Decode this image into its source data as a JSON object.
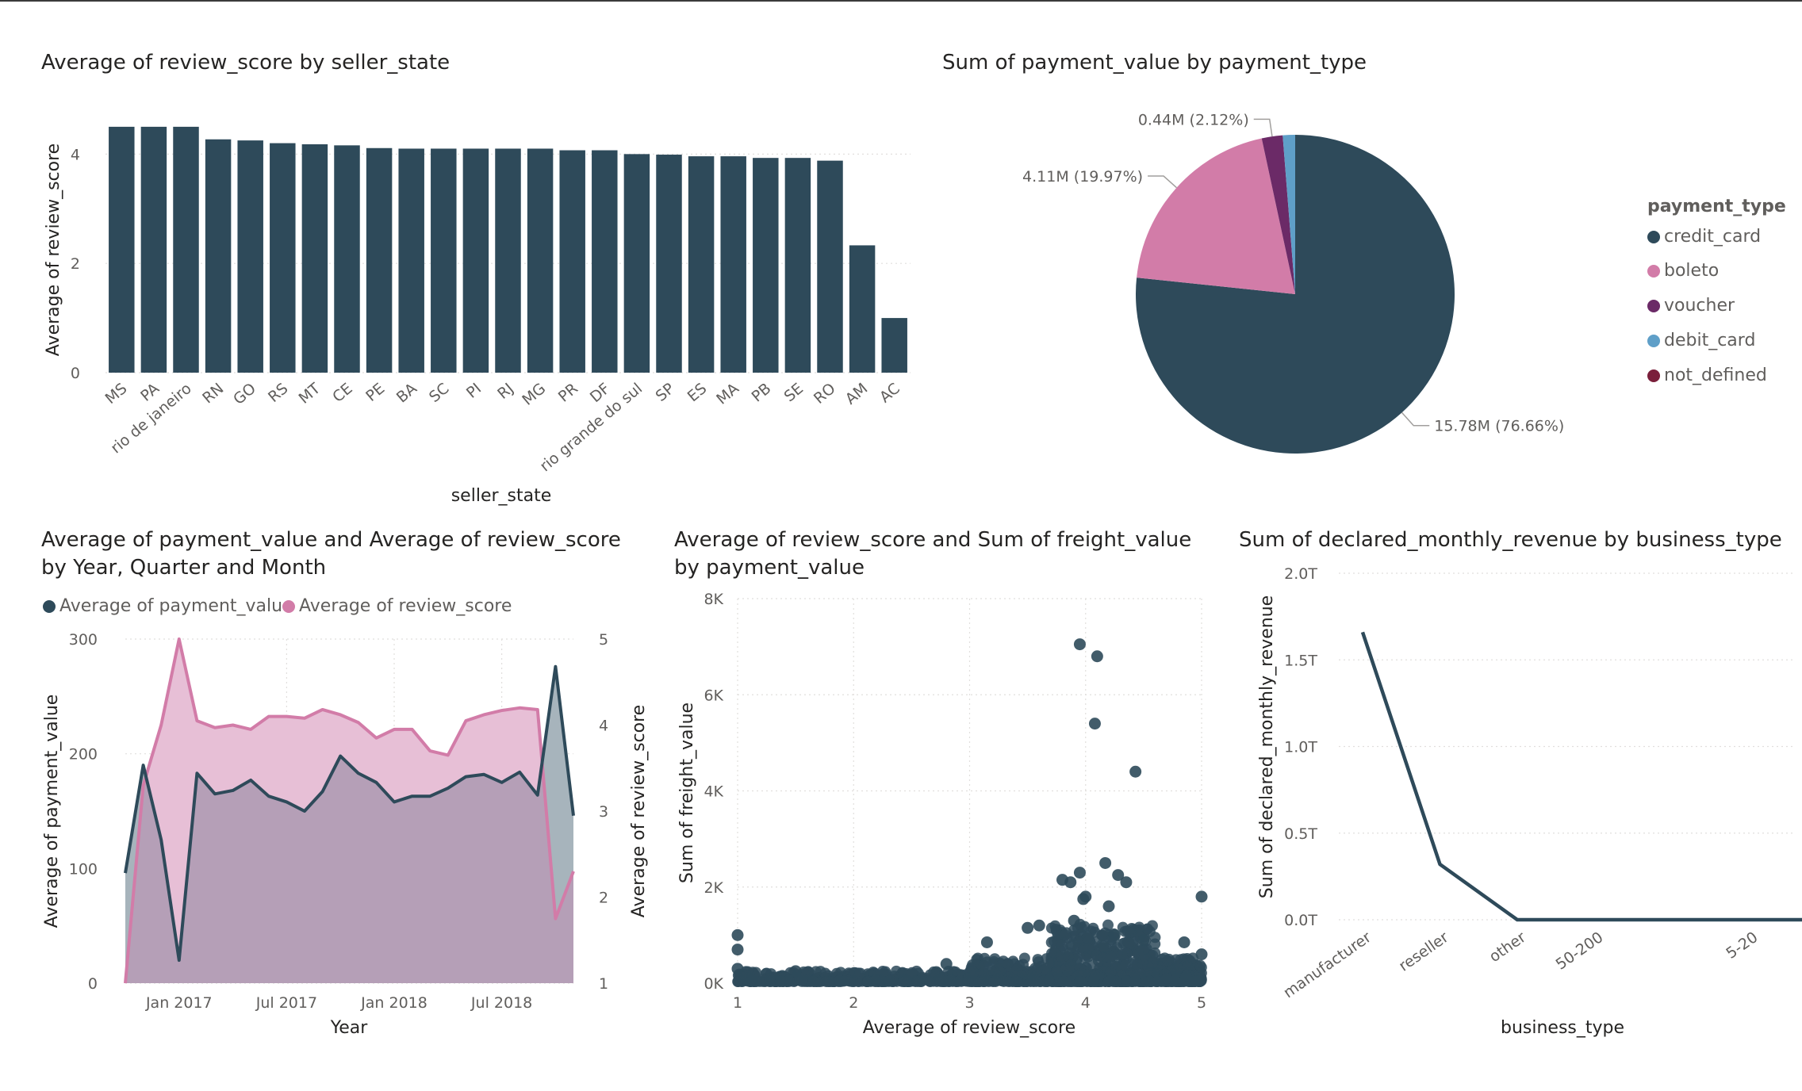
{
  "colors": {
    "dark": "#2e4a5a",
    "pink": "#d27ca8",
    "purple": "#6b2a67",
    "blue": "#5f9fc8",
    "maroon": "#7a1f3b",
    "pink_area": "#e7bfd6",
    "overlap_area": "#b59fb7",
    "dark_area": "#a7b4bc"
  },
  "chart_data": [
    {
      "id": "review_by_state",
      "type": "bar",
      "title": "Average of review_score by seller_state",
      "xlabel": "seller_state",
      "ylabel": "Average of review_score",
      "ylim": [
        0,
        4.6
      ],
      "yticks": [
        "0",
        "2",
        "4"
      ],
      "categories": [
        "MS",
        "PA",
        "rio de janeiro",
        "RN",
        "GO",
        "RS",
        "MT",
        "CE",
        "PE",
        "BA",
        "SC",
        "PI",
        "RJ",
        "MG",
        "PR",
        "DF",
        "rio grande do sul",
        "SP",
        "ES",
        "MA",
        "PB",
        "SE",
        "RO",
        "AM",
        "AC"
      ],
      "values": [
        4.5,
        4.5,
        4.5,
        4.27,
        4.25,
        4.2,
        4.18,
        4.16,
        4.11,
        4.1,
        4.1,
        4.1,
        4.1,
        4.1,
        4.07,
        4.07,
        4.0,
        3.99,
        3.96,
        3.96,
        3.93,
        3.93,
        3.88,
        2.33,
        1.0
      ]
    },
    {
      "id": "payment_by_type",
      "type": "pie",
      "title": "Sum of payment_value by payment_type",
      "legend_title": "payment_type",
      "legend_position": "right",
      "slices": [
        {
          "name": "credit_card",
          "value": 15.78,
          "pct": 76.66,
          "label": "15.78M (76.66%)",
          "color": "#2e4a5a"
        },
        {
          "name": "boleto",
          "value": 4.11,
          "pct": 19.97,
          "label": "4.11M (19.97%)",
          "color": "#d27ca8"
        },
        {
          "name": "voucher",
          "value": 0.44,
          "pct": 2.12,
          "label": "0.44M (2.12%)",
          "color": "#6b2a67"
        },
        {
          "name": "debit_card",
          "value": 0.25,
          "pct": 1.25,
          "label": "",
          "color": "#5f9fc8"
        },
        {
          "name": "not_defined",
          "value": 0.0,
          "pct": 0.0,
          "label": "",
          "color": "#7a1f3b"
        }
      ]
    },
    {
      "id": "payment_review_time",
      "type": "area",
      "title": "Average of payment_value and Average of review_score\nby Year, Quarter and Month",
      "xlabel": "Year",
      "ylabel": "Average of payment_value",
      "y2label": "Average of review_score",
      "ylim": [
        0,
        300
      ],
      "y2lim": [
        1,
        5
      ],
      "yticks": [
        "0",
        "100",
        "200",
        "300"
      ],
      "y2ticks": [
        "1",
        "2",
        "3",
        "4",
        "5"
      ],
      "xticks": [
        "Jan 2017",
        "Jul 2017",
        "Jan 2018",
        "Jul 2018"
      ],
      "xtick_index": [
        3,
        9,
        15,
        21
      ],
      "legend_position": "top-left",
      "series": [
        {
          "name": "Average of payment_value",
          "axis": "left",
          "values": [
            96,
            190,
            125,
            20,
            183,
            165,
            168,
            177,
            163,
            158,
            150,
            167,
            198,
            183,
            175,
            158,
            163,
            163,
            170,
            180,
            182,
            175,
            184,
            164,
            276,
            146
          ]
        },
        {
          "name": "Average of review_score",
          "axis": "right",
          "values": [
            1.0,
            3.3,
            4.0,
            5.0,
            4.05,
            3.97,
            4.0,
            3.95,
            4.1,
            4.1,
            4.08,
            4.18,
            4.12,
            4.03,
            3.85,
            3.95,
            3.95,
            3.7,
            3.65,
            4.05,
            4.12,
            4.17,
            4.2,
            4.18,
            1.75,
            2.3
          ]
        }
      ]
    },
    {
      "id": "review_freight_scatter",
      "type": "scatter",
      "title": "Average of review_score and Sum of freight_value\nby payment_value",
      "xlabel": "Average of review_score",
      "ylabel": "Sum of freight_value",
      "xlim": [
        1,
        5
      ],
      "ylim": [
        0,
        8000
      ],
      "xticks": [
        "1",
        "2",
        "3",
        "4",
        "5"
      ],
      "yticks": [
        "0K",
        "2K",
        "4K",
        "6K",
        "8K"
      ],
      "highlight_points": [
        [
          3.95,
          7050
        ],
        [
          4.1,
          6800
        ],
        [
          4.08,
          5400
        ],
        [
          4.43,
          4400
        ],
        [
          4.17,
          2500
        ],
        [
          3.95,
          2300
        ],
        [
          3.8,
          2150
        ],
        [
          3.87,
          2100
        ],
        [
          4.28,
          2250
        ],
        [
          4.35,
          2100
        ],
        [
          4.0,
          1800
        ],
        [
          3.98,
          1750
        ],
        [
          4.2,
          1600
        ],
        [
          3.6,
          1200
        ],
        [
          3.5,
          1150
        ],
        [
          4.5,
          900
        ],
        [
          3.15,
          850
        ],
        [
          4.85,
          850
        ],
        [
          1.0,
          1000
        ],
        [
          1.0,
          700
        ],
        [
          5.0,
          1800
        ],
        [
          5.0,
          600
        ],
        [
          1.0,
          300
        ],
        [
          1.5,
          250
        ],
        [
          2.8,
          400
        ],
        [
          4.25,
          1000
        ],
        [
          3.9,
          1300
        ]
      ],
      "point_count_shown": "dense cluster near 0K across all review scores"
    },
    {
      "id": "revenue_by_business",
      "type": "line",
      "title": "Sum of declared_monthly_revenue by business_type",
      "xlabel": "business_type",
      "ylabel": "Sum of declared_monthly_revenue",
      "ylim": [
        0,
        2.0
      ],
      "yticks": [
        "0.0T",
        "0.5T",
        "1.0T",
        "1.5T",
        "2.0T"
      ],
      "categories": [
        "manufacturer",
        "reseller",
        "other",
        "50-200",
        "",
        "5-20",
        ""
      ],
      "category_labels": [
        "manufacturer",
        "reseller",
        "other",
        "50-200",
        "5-20"
      ],
      "label_index": [
        0,
        1,
        2,
        3,
        5
      ],
      "values": [
        1.66,
        0.32,
        0.0,
        0.0,
        0.0,
        0.0,
        0.0
      ]
    }
  ]
}
